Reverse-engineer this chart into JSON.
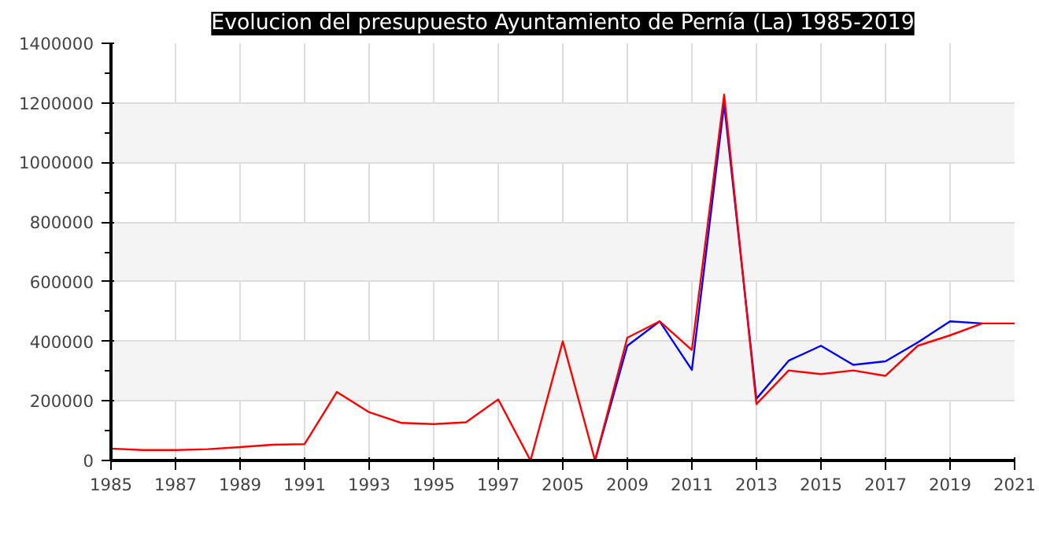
{
  "chart_data": {
    "type": "line",
    "title": "Evolucion del presupuesto Ayuntamiento de Pernía (La) 1985-2019",
    "categories": [
      "1985",
      null,
      "1987",
      null,
      "1989",
      null,
      "1991",
      null,
      "1993",
      null,
      "1995",
      null,
      "1997",
      null,
      "2005",
      null,
      "2009",
      null,
      "2011",
      null,
      "2013",
      null,
      "2015",
      null,
      "2017",
      null,
      "2019",
      null,
      "2021"
    ],
    "series": [
      {
        "color": "#0000ff",
        "values": [
          null,
          null,
          null,
          null,
          null,
          null,
          null,
          null,
          null,
          null,
          null,
          null,
          null,
          null,
          null,
          0,
          385000,
          467000,
          304000,
          1197000,
          207000,
          335000,
          385000,
          321000,
          333000,
          396000,
          467000,
          460000,
          null
        ]
      },
      {
        "color": "#ff0000",
        "values": [
          40000,
          35000,
          35000,
          38000,
          45000,
          53000,
          55000,
          230000,
          162000,
          126000,
          122000,
          128000,
          205000,
          0,
          400000,
          0,
          412000,
          467000,
          371000,
          1228000,
          189000,
          302000,
          290000,
          302000,
          284000,
          385000,
          420000,
          460000,
          460000
        ]
      }
    ],
    "ylim": [
      0,
      1400000
    ],
    "yticks": [
      0,
      200000,
      400000,
      600000,
      800000,
      1000000,
      1200000,
      1400000
    ],
    "grid": true,
    "marker": "none",
    "line_style": "solid"
  }
}
